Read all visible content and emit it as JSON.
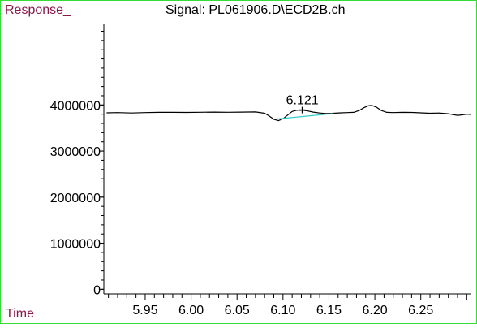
{
  "chart_data": {
    "type": "line",
    "title": "Signal: PL061906.D\\ECD2B.ch",
    "ylabel": "Response_",
    "xlabel": "Time",
    "xlim": [
      5.905,
      6.305
    ],
    "ylim": [
      -100000,
      5750000
    ],
    "x_ticks": [
      5.95,
      6.0,
      6.05,
      6.1,
      6.15,
      6.2,
      6.25
    ],
    "x_tick_labels": [
      "5.95",
      "6.00",
      "6.05",
      "6.10",
      "6.15",
      "6.20",
      "6.25"
    ],
    "y_ticks": [
      0,
      1000000,
      2000000,
      3000000,
      4000000
    ],
    "y_tick_labels": [
      "0",
      "1000000",
      "2000000",
      "3000000",
      "4000000"
    ],
    "series": [
      {
        "color": "#000000",
        "x": [
          5.908,
          5.92,
          5.935,
          5.95,
          5.965,
          5.98,
          5.995,
          6.01,
          6.025,
          6.04,
          6.055,
          6.07,
          6.08,
          6.085,
          6.09,
          6.095,
          6.1,
          6.105,
          6.11,
          6.115,
          6.121,
          6.127,
          6.133,
          6.14,
          6.147,
          6.155,
          6.163,
          6.17,
          6.177,
          6.183,
          6.188,
          6.193,
          6.197,
          6.202,
          6.207,
          6.213,
          6.22,
          6.23,
          6.24,
          6.25,
          6.26,
          6.27,
          6.28,
          6.285,
          6.29,
          6.295,
          6.3,
          6.305
        ],
        "y": [
          3830000,
          3835000,
          3825000,
          3835000,
          3840000,
          3840000,
          3838000,
          3842000,
          3845000,
          3842000,
          3845000,
          3848000,
          3820000,
          3760000,
          3690000,
          3660000,
          3700000,
          3780000,
          3860000,
          3885000,
          3890000,
          3870000,
          3845000,
          3825000,
          3815000,
          3820000,
          3830000,
          3835000,
          3840000,
          3880000,
          3940000,
          3985000,
          3990000,
          3950000,
          3880000,
          3840000,
          3835000,
          3840000,
          3838000,
          3830000,
          3820000,
          3825000,
          3810000,
          3790000,
          3775000,
          3785000,
          3800000,
          3795000
        ]
      },
      {
        "color": "#33cccc",
        "x": [
          6.093,
          6.155
        ],
        "y": [
          3695000,
          3815000
        ]
      }
    ],
    "annotations": [
      {
        "text": "6.121",
        "x": 6.121,
        "y": 3890000
      }
    ]
  }
}
